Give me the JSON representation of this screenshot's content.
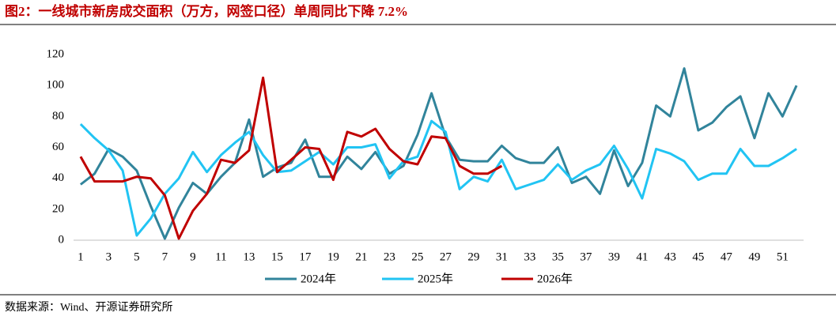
{
  "chart_data": {
    "type": "line",
    "title": "图2：一线城市新房成交面积（万方，网签口径）单周同比下降 7.2%",
    "source": "数据来源：Wind、开源证券研究所",
    "categories": [
      "1",
      null,
      "3",
      null,
      "5",
      null,
      "7",
      null,
      "9",
      null,
      "11",
      null,
      "13",
      null,
      "15",
      null,
      "17",
      null,
      "19",
      null,
      "21",
      null,
      "23",
      null,
      "25",
      null,
      "27",
      null,
      "29",
      null,
      "31",
      null,
      "33",
      null,
      "35",
      null,
      "37",
      null,
      "39",
      null,
      "41",
      null,
      "43",
      null,
      "45",
      null,
      "47",
      null,
      "49",
      null,
      "51",
      null
    ],
    "series": [
      {
        "name": "2024年",
        "color": "#31849b",
        "values": [
          36,
          43,
          59,
          54,
          45,
          22,
          1,
          21,
          37,
          30,
          41,
          50,
          78,
          41,
          47,
          50,
          65,
          41,
          41,
          54,
          46,
          57,
          43,
          48,
          68,
          95,
          67,
          52,
          51,
          51,
          61,
          53,
          50,
          50,
          60,
          37,
          41,
          30,
          58,
          35,
          50,
          87,
          80,
          111,
          71,
          76,
          86,
          93,
          66,
          95,
          80,
          100
        ]
      },
      {
        "name": "2025年",
        "color": "#21c4f3",
        "values": [
          75,
          66,
          58,
          45,
          3,
          14,
          30,
          40,
          57,
          44,
          55,
          63,
          70,
          55,
          44,
          45,
          51,
          57,
          49,
          60,
          60,
          62,
          40,
          51,
          54,
          77,
          70,
          33,
          41,
          38,
          52,
          33,
          36,
          39,
          49,
          39,
          45,
          49,
          61,
          46,
          27,
          59,
          56,
          51,
          39,
          43,
          43,
          59,
          48,
          48,
          53,
          59
        ]
      },
      {
        "name": "2026年",
        "color": "#c00000",
        "values": [
          54,
          38,
          38,
          38,
          41,
          40,
          29,
          1,
          19,
          30,
          52,
          50,
          58,
          105,
          44,
          52,
          60,
          59,
          39,
          70,
          67,
          72,
          59,
          51,
          49,
          67,
          66,
          48,
          43,
          43,
          48,
          null,
          null,
          null,
          null,
          null,
          null,
          null,
          null,
          null,
          null,
          null,
          null,
          null,
          null,
          null,
          null,
          null,
          null,
          null,
          null,
          null
        ]
      }
    ],
    "ylim": [
      0,
      120
    ],
    "yticks": [
      0,
      20,
      40,
      60,
      80,
      100,
      120
    ],
    "grid": false,
    "legend": "bottom"
  }
}
